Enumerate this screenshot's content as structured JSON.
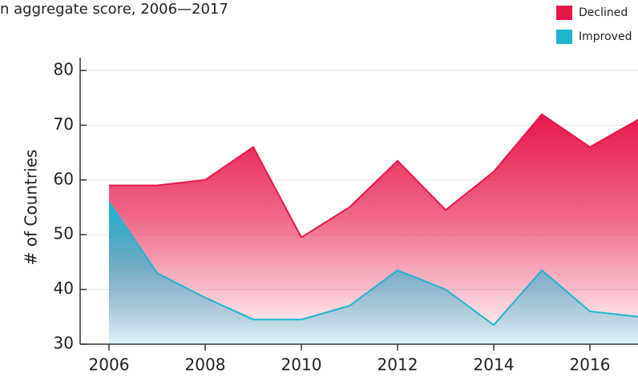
{
  "chart_data": {
    "type": "area",
    "title": "n aggregate score, 2006—2017",
    "y_label": "# of Countries",
    "x": [
      2006,
      2007,
      2008,
      2009,
      2010,
      2011,
      2012,
      2013,
      2014,
      2015,
      2016,
      2017
    ],
    "series": [
      {
        "name": "Declined",
        "color": "#e8174a",
        "values": [
          59,
          59,
          60,
          66,
          49.5,
          55,
          63.5,
          54.5,
          61.5,
          72,
          66,
          71
        ]
      },
      {
        "name": "Improved",
        "color": "#1fb5cf",
        "values": [
          56,
          43,
          38.5,
          34.5,
          34.5,
          37,
          43.5,
          40,
          33.5,
          43.5,
          36,
          35
        ]
      }
    ],
    "xlim": [
      2005.4,
      2017
    ],
    "xticks": [
      2006,
      2008,
      2010,
      2012,
      2014,
      2016
    ],
    "ylim": [
      30,
      80
    ],
    "yticks": [
      30,
      40,
      50,
      60,
      70,
      80
    ],
    "grid": true,
    "legend": "top-right"
  }
}
